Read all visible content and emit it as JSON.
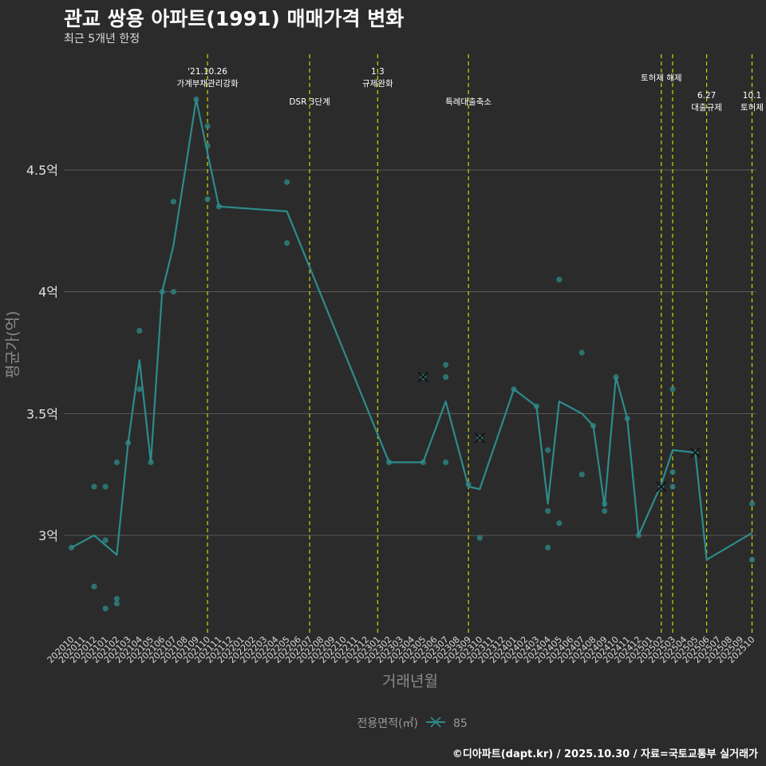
{
  "title": "관교 쌍용 아파트(1991) 매매가격 변화",
  "subtitle": "최근 5개년 한정",
  "caption": "©디아파트(dapt.kr) / 2025.10.30 / 자료=국토교통부 실거래가",
  "colors": {
    "background": "#2b2b2b",
    "grid": "#5a5a5a",
    "line": "#2e8b8b",
    "point": "#2e7f7f",
    "vline": "#d4d400"
  },
  "chart_data": {
    "type": "line",
    "title": "관교 쌍용 아파트(1991) 매매가격 변화",
    "xlabel": "거래년월",
    "ylabel": "평균가(억)",
    "ylim": [
      2.6,
      5.0
    ],
    "y_ticks": [
      {
        "value": 3.0,
        "label": "3억"
      },
      {
        "value": 3.5,
        "label": "3.5억"
      },
      {
        "value": 4.0,
        "label": "4억"
      },
      {
        "value": 4.5,
        "label": "4.5억"
      }
    ],
    "categories": [
      "202010",
      "202011",
      "202012",
      "202101",
      "202102",
      "202103",
      "202104",
      "202105",
      "202106",
      "202107",
      "202108",
      "202109",
      "202110",
      "202111",
      "202112",
      "202201",
      "202202",
      "202203",
      "202204",
      "202205",
      "202206",
      "202207",
      "202208",
      "202209",
      "202210",
      "202211",
      "202212",
      "202301",
      "202302",
      "202303",
      "202304",
      "202305",
      "202306",
      "202307",
      "202308",
      "202309",
      "202310",
      "202311",
      "202312",
      "202401",
      "202402",
      "202403",
      "202404",
      "202405",
      "202406",
      "202407",
      "202408",
      "202409",
      "202410",
      "202411",
      "202412",
      "202501",
      "202502",
      "202503",
      "202504",
      "202505",
      "202506",
      "202507",
      "202508",
      "202509",
      "202510"
    ],
    "legend": {
      "title": "전용면적(㎡)",
      "label": "85"
    },
    "series": [
      {
        "name": "85",
        "line": [
          {
            "x": "202010",
            "y": 2.95
          },
          {
            "x": "202012",
            "y": 3.0
          },
          {
            "x": "202101",
            "y": 2.96
          },
          {
            "x": "202102",
            "y": 2.92
          },
          {
            "x": "202103",
            "y": 3.38
          },
          {
            "x": "202104",
            "y": 3.72
          },
          {
            "x": "202105",
            "y": 3.3
          },
          {
            "x": "202106",
            "y": 4.0
          },
          {
            "x": "202107",
            "y": 4.19
          },
          {
            "x": "202109",
            "y": 4.79
          },
          {
            "x": "202111",
            "y": 4.35
          },
          {
            "x": "202205",
            "y": 4.33
          },
          {
            "x": "202302",
            "y": 3.3
          },
          {
            "x": "202305",
            "y": 3.3
          },
          {
            "x": "202307",
            "y": 3.55
          },
          {
            "x": "202309",
            "y": 3.2
          },
          {
            "x": "202310",
            "y": 3.19
          },
          {
            "x": "202401",
            "y": 3.6
          },
          {
            "x": "202403",
            "y": 3.53
          },
          {
            "x": "202404",
            "y": 3.13
          },
          {
            "x": "202405",
            "y": 3.55
          },
          {
            "x": "202407",
            "y": 3.5
          },
          {
            "x": "202408",
            "y": 3.45
          },
          {
            "x": "202409",
            "y": 3.12
          },
          {
            "x": "202410",
            "y": 3.65
          },
          {
            "x": "202411",
            "y": 3.48
          },
          {
            "x": "202412",
            "y": 3.0
          },
          {
            "x": "202502",
            "y": 3.21
          },
          {
            "x": "202503",
            "y": 3.35
          },
          {
            "x": "202505",
            "y": 3.34
          },
          {
            "x": "202506",
            "y": 2.9
          },
          {
            "x": "202510",
            "y": 3.01
          }
        ],
        "points": [
          {
            "x": "202010",
            "y": 2.95
          },
          {
            "x": "202012",
            "y": 3.2
          },
          {
            "x": "202012",
            "y": 2.79
          },
          {
            "x": "202101",
            "y": 3.2
          },
          {
            "x": "202101",
            "y": 2.98
          },
          {
            "x": "202101",
            "y": 2.7
          },
          {
            "x": "202102",
            "y": 3.3
          },
          {
            "x": "202102",
            "y": 2.74
          },
          {
            "x": "202102",
            "y": 2.72
          },
          {
            "x": "202103",
            "y": 3.38
          },
          {
            "x": "202104",
            "y": 3.84
          },
          {
            "x": "202104",
            "y": 3.6
          },
          {
            "x": "202105",
            "y": 3.3
          },
          {
            "x": "202106",
            "y": 4.0
          },
          {
            "x": "202107",
            "y": 4.37
          },
          {
            "x": "202107",
            "y": 4.0
          },
          {
            "x": "202109",
            "y": 4.79
          },
          {
            "x": "202110",
            "y": 4.68
          },
          {
            "x": "202110",
            "y": 4.6
          },
          {
            "x": "202110",
            "y": 4.38
          },
          {
            "x": "202111",
            "y": 4.35
          },
          {
            "x": "202205",
            "y": 4.45
          },
          {
            "x": "202205",
            "y": 4.2
          },
          {
            "x": "202302",
            "y": 3.3
          },
          {
            "x": "202305",
            "y": 3.3
          },
          {
            "x": "202307",
            "y": 3.7
          },
          {
            "x": "202307",
            "y": 3.65
          },
          {
            "x": "202307",
            "y": 3.3
          },
          {
            "x": "202309",
            "y": 3.21
          },
          {
            "x": "202310",
            "y": 2.99
          },
          {
            "x": "202401",
            "y": 3.6
          },
          {
            "x": "202403",
            "y": 3.53
          },
          {
            "x": "202404",
            "y": 3.35
          },
          {
            "x": "202404",
            "y": 3.1
          },
          {
            "x": "202404",
            "y": 2.95
          },
          {
            "x": "202405",
            "y": 4.05
          },
          {
            "x": "202405",
            "y": 3.05
          },
          {
            "x": "202407",
            "y": 3.75
          },
          {
            "x": "202407",
            "y": 3.25
          },
          {
            "x": "202408",
            "y": 3.45
          },
          {
            "x": "202409",
            "y": 3.13
          },
          {
            "x": "202409",
            "y": 3.1
          },
          {
            "x": "202410",
            "y": 3.65
          },
          {
            "x": "202411",
            "y": 3.48
          },
          {
            "x": "202412",
            "y": 3.0
          },
          {
            "x": "202503",
            "y": 3.6
          },
          {
            "x": "202503",
            "y": 3.26
          },
          {
            "x": "202503",
            "y": 3.2
          },
          {
            "x": "202510",
            "y": 3.13
          },
          {
            "x": "202510",
            "y": 2.9
          }
        ],
        "x_markers": [
          {
            "x": "202305",
            "y": 3.65
          },
          {
            "x": "202310",
            "y": 3.4
          },
          {
            "x": "202502",
            "y": 3.2
          },
          {
            "x": "202505",
            "y": 3.34
          }
        ]
      }
    ],
    "annotations": [
      {
        "x": "202110",
        "lines": [
          "'21.10.26",
          "가계부채관리강화"
        ],
        "row": 0
      },
      {
        "x": "202207",
        "lines": [
          "DSR 3단계"
        ],
        "row": 2
      },
      {
        "x": "202301",
        "lines": [
          "1.3",
          "규제완화"
        ],
        "row": 0
      },
      {
        "x": "202309",
        "lines": [
          "특례대출축소"
        ],
        "row": 2
      },
      {
        "x": "202502",
        "lines": [
          "토허제 해제"
        ],
        "row": 1
      },
      {
        "x": "202503",
        "lines": [],
        "row": 1
      },
      {
        "x": "202506",
        "lines": [
          "6.27",
          "대출규제"
        ],
        "row": 2
      },
      {
        "x": "202510",
        "lines": [
          "10.1",
          "토허제"
        ],
        "row": 2
      }
    ]
  }
}
